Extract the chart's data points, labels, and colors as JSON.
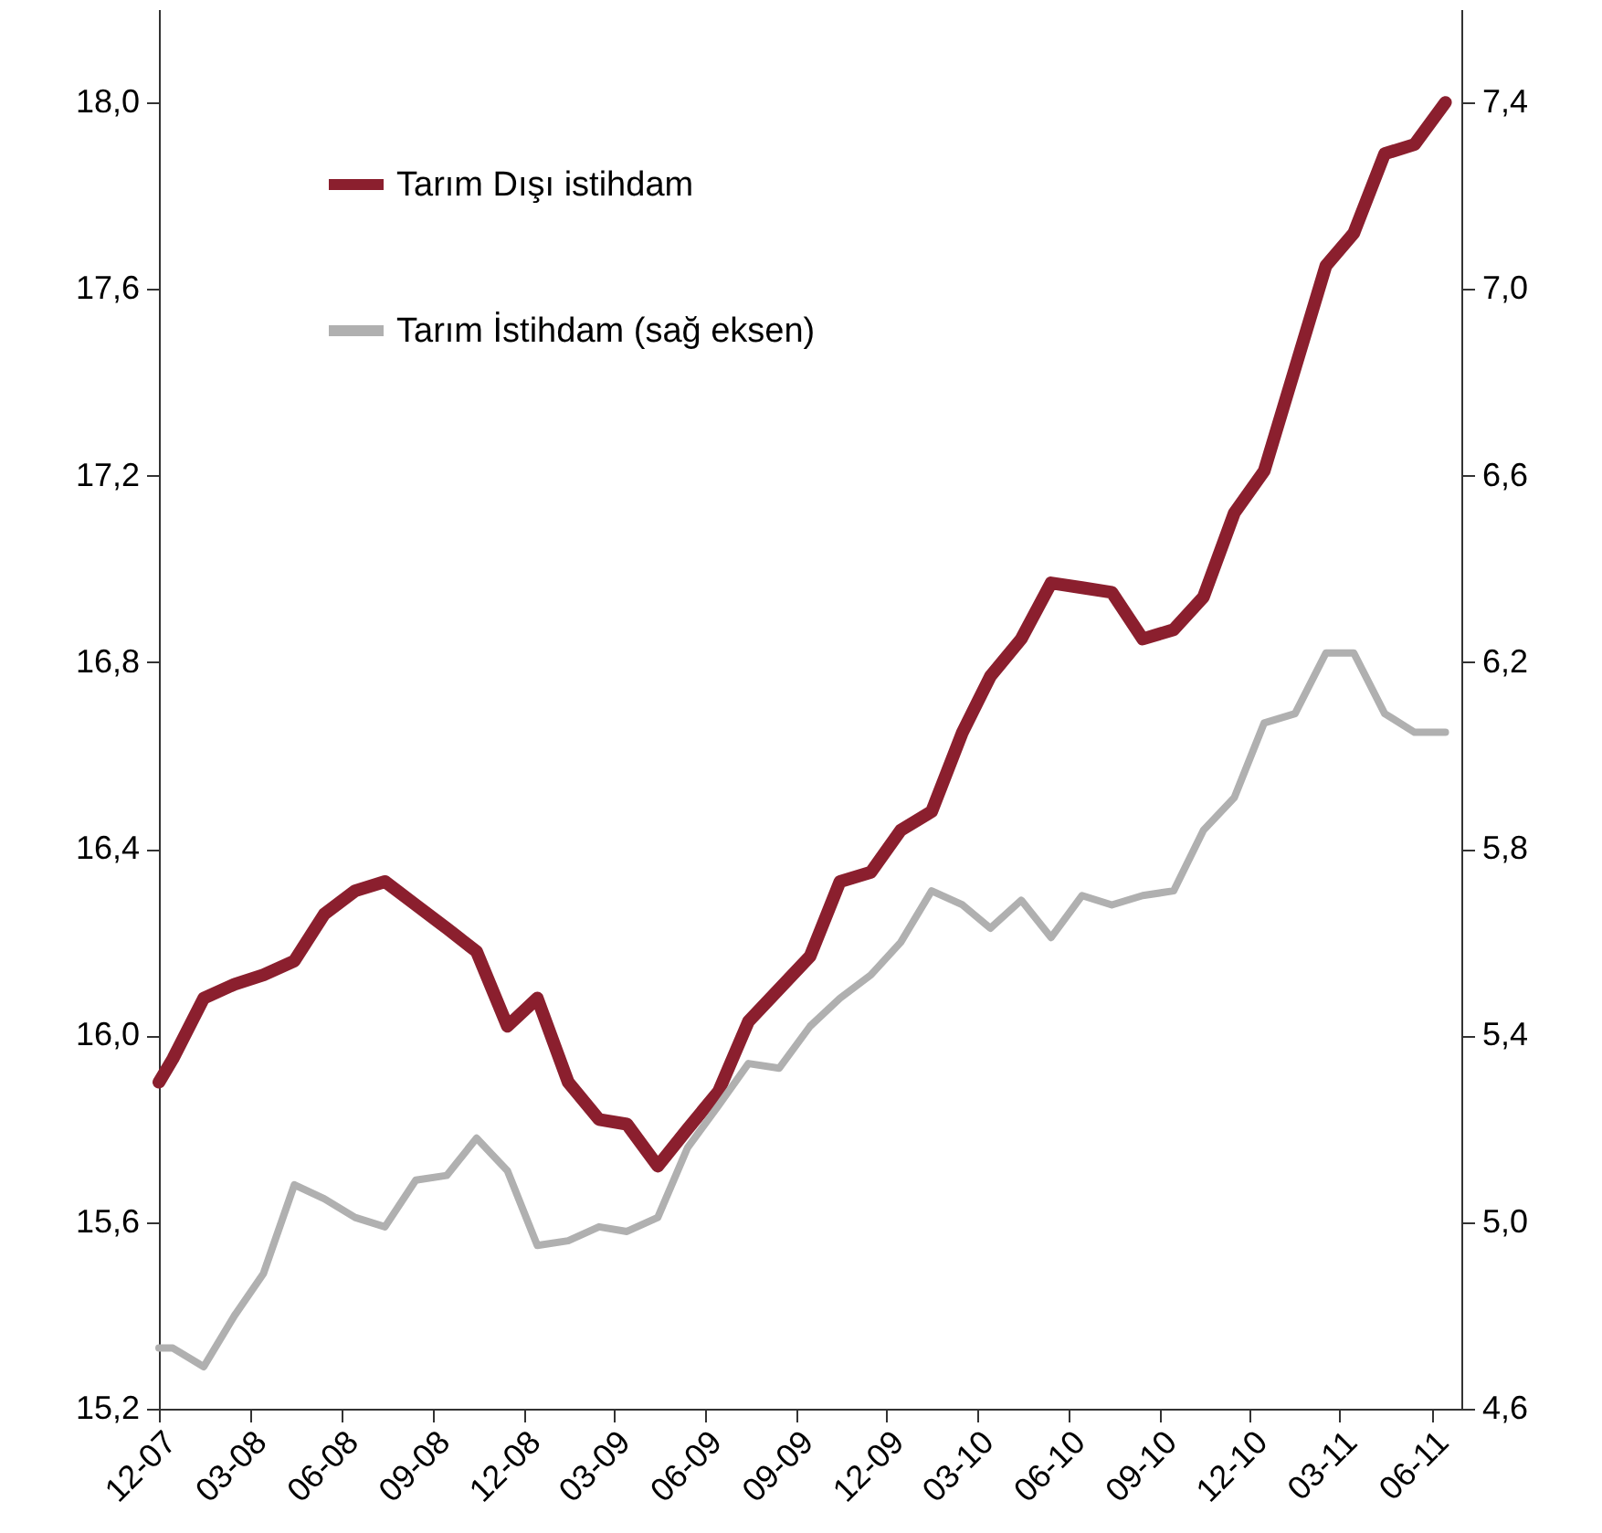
{
  "chart_data": {
    "type": "line",
    "x": [
      "2007-12-01",
      "2007-12-15",
      "2008-01-15",
      "2008-02-15",
      "2008-03-15",
      "2008-04-15",
      "2008-05-15",
      "2008-06-15",
      "2008-07-15",
      "2008-08-15",
      "2008-09-15",
      "2008-10-15",
      "2008-11-15",
      "2008-12-15",
      "2009-01-15",
      "2009-02-15",
      "2009-03-15",
      "2009-04-15",
      "2009-05-15",
      "2009-06-15",
      "2009-07-15",
      "2009-08-15",
      "2009-09-15",
      "2009-10-15",
      "2009-11-15",
      "2009-12-15",
      "2010-01-15",
      "2010-02-15",
      "2010-03-15",
      "2010-04-15",
      "2010-05-15",
      "2010-06-15",
      "2010-07-15",
      "2010-08-15",
      "2010-09-15",
      "2010-10-15",
      "2010-11-15",
      "2010-12-15",
      "2011-01-15",
      "2011-02-15",
      "2011-03-15",
      "2011-04-15",
      "2011-05-15",
      "2011-06-15"
    ],
    "series": [
      {
        "name": "Tarım Dışı istihdam",
        "color": "#8b1f2e",
        "values": [
          15.9,
          15.95,
          16.08,
          16.11,
          16.13,
          16.16,
          16.26,
          16.31,
          16.33,
          16.28,
          16.23,
          16.18,
          16.02,
          16.08,
          15.9,
          15.82,
          15.81,
          15.72,
          15.8,
          15.88,
          16.03,
          16.1,
          16.17,
          16.33,
          16.35,
          16.44,
          16.48,
          16.65,
          16.77,
          16.85,
          16.97,
          16.96,
          16.95,
          16.85,
          16.87,
          16.94,
          17.12,
          17.21,
          17.43,
          17.65,
          17.72,
          17.89,
          17.91,
          18.0
        ]
      },
      {
        "name": "Tarım İstihdam (sağ eksen)",
        "color": "#b0b0b0",
        "axis": "y2",
        "values": [
          4.73,
          4.73,
          4.69,
          4.8,
          4.89,
          5.08,
          5.05,
          5.01,
          4.99,
          5.09,
          5.1,
          5.18,
          5.11,
          4.95,
          4.96,
          4.99,
          4.98,
          5.01,
          5.16,
          5.25,
          5.34,
          5.33,
          5.42,
          5.48,
          5.53,
          5.6,
          5.71,
          5.68,
          5.63,
          5.69,
          5.61,
          5.7,
          5.68,
          5.7,
          5.71,
          5.84,
          5.91,
          6.07,
          6.09,
          6.22,
          6.22,
          6.09,
          6.05,
          6.05
        ]
      }
    ],
    "xlim": [
      "2007-12-01",
      "2011-07-01"
    ],
    "xticks": [
      {
        "value": "2007-12-01",
        "label": "12-07"
      },
      {
        "value": "2008-03-01",
        "label": "03-08"
      },
      {
        "value": "2008-06-01",
        "label": "06-08"
      },
      {
        "value": "2008-09-01",
        "label": "09-08"
      },
      {
        "value": "2008-12-01",
        "label": "12-08"
      },
      {
        "value": "2009-03-01",
        "label": "03-09"
      },
      {
        "value": "2009-06-01",
        "label": "06-09"
      },
      {
        "value": "2009-09-01",
        "label": "09-09"
      },
      {
        "value": "2009-12-01",
        "label": "12-09"
      },
      {
        "value": "2010-03-01",
        "label": "03-10"
      },
      {
        "value": "2010-06-01",
        "label": "06-10"
      },
      {
        "value": "2010-09-01",
        "label": "09-10"
      },
      {
        "value": "2010-12-01",
        "label": "12-10"
      },
      {
        "value": "2011-03-01",
        "label": "03-11"
      },
      {
        "value": "2011-06-01",
        "label": "06-11"
      }
    ],
    "ylim": [
      15.2,
      18.2
    ],
    "yticks": [
      {
        "value": 15.2,
        "label": "15,2"
      },
      {
        "value": 15.6,
        "label": "15,6"
      },
      {
        "value": 16.0,
        "label": "16,0"
      },
      {
        "value": 16.4,
        "label": "16,4"
      },
      {
        "value": 16.8,
        "label": "16,8"
      },
      {
        "value": 17.2,
        "label": "17,2"
      },
      {
        "value": 17.6,
        "label": "17,6"
      },
      {
        "value": 18.0,
        "label": "18,0"
      }
    ],
    "y2lim": [
      4.6,
      7.6
    ],
    "y2ticks": [
      {
        "value": 4.6,
        "label": "4,6"
      },
      {
        "value": 5.0,
        "label": "5,0"
      },
      {
        "value": 5.4,
        "label": "5,4"
      },
      {
        "value": 5.8,
        "label": "5,8"
      },
      {
        "value": 6.2,
        "label": "6,2"
      },
      {
        "value": 6.6,
        "label": "6,6"
      },
      {
        "value": 7.0,
        "label": "7,0"
      },
      {
        "value": 7.4,
        "label": "7,4"
      }
    ],
    "grid": false,
    "legend": "top left",
    "marker": "none",
    "line_style": "solid"
  }
}
